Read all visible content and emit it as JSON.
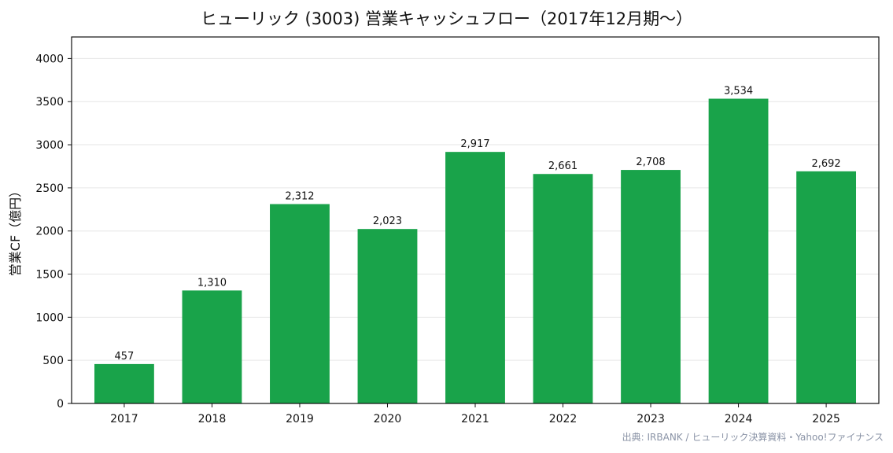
{
  "chart_data": {
    "type": "bar",
    "title": "ヒューリック (3003) 営業キャッシュフロー（2017年12月期〜）",
    "ylabel": "営業CF（億円）",
    "xlabel": "",
    "categories": [
      "2017",
      "2018",
      "2019",
      "2020",
      "2021",
      "2022",
      "2023",
      "2024",
      "2025"
    ],
    "values": [
      457,
      1310,
      2312,
      2023,
      2917,
      2661,
      2708,
      3534,
      2692
    ],
    "data_labels": [
      "457",
      "1,310",
      "2,312",
      "2,023",
      "2,917",
      "2,661",
      "2,708",
      "3,534",
      "2,692"
    ],
    "ylim": [
      0,
      4250
    ],
    "yticks": [
      0,
      500,
      1000,
      1500,
      2000,
      2500,
      3000,
      3500,
      4000
    ],
    "grid": true,
    "bar_color": "#19a34a",
    "source": "出典: IRBANK / ヒューリック決算資料・Yahoo!ファイナンス"
  }
}
